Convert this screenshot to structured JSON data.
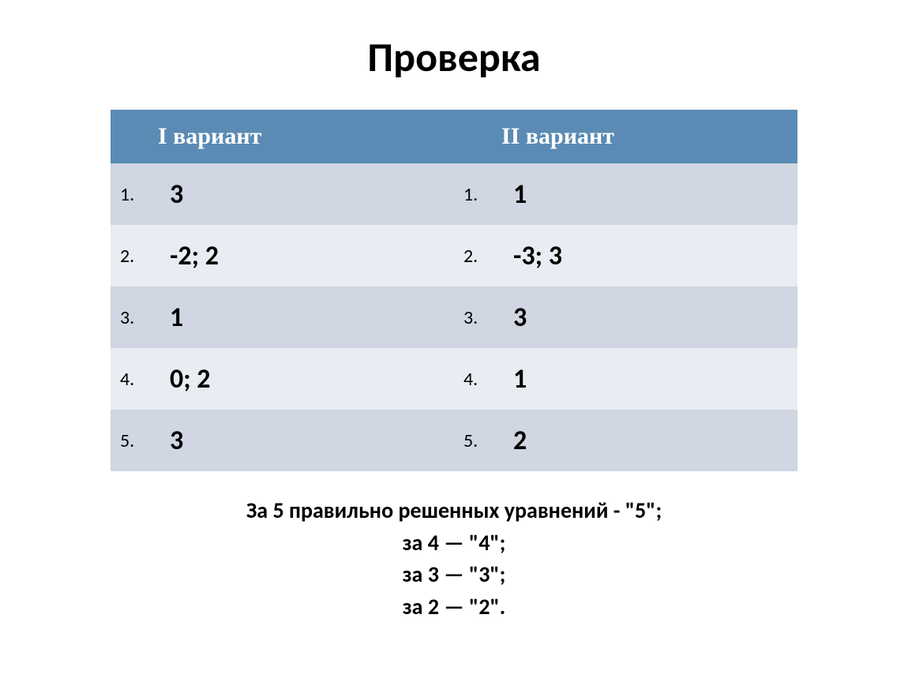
{
  "title": "Проверка",
  "table": {
    "header_bg": "#5b8bb4",
    "header_color": "#ffffff",
    "row_odd_bg": "#d0d6e2",
    "row_even_bg": "#e9ecf2",
    "col1_header": "I вариант",
    "col2_header": "II вариант",
    "rows": [
      {
        "n1": "1.",
        "v1": "3",
        "n2": "1.",
        "v2": "1"
      },
      {
        "n1": "2.",
        "v1": "-2;  2",
        "n2": "2.",
        "v2": "-3;  3"
      },
      {
        "n1": "3.",
        "v1": "1",
        "n2": "3.",
        "v2": "3"
      },
      {
        "n1": "4.",
        "v1": "0; 2",
        "n2": "4.",
        "v2": "1"
      },
      {
        "n1": "5.",
        "v1": "3",
        "n2": "5.",
        "v2": "2"
      }
    ]
  },
  "footer": {
    "line1": "За 5 правильно решенных уравнений - \"5\";",
    "line2": "за 4   — \"4\";",
    "line3": "за  3   — \"3\";",
    "line4": "за 2    — \"2\"."
  },
  "styling": {
    "title_fontsize": 52,
    "header_fontsize": 30,
    "num_fontsize": 24,
    "val_fontsize": 34,
    "footer_fontsize": 28,
    "background": "#ffffff",
    "text_color": "#000000",
    "header_font": "Times New Roman",
    "body_font": "Calibri"
  }
}
